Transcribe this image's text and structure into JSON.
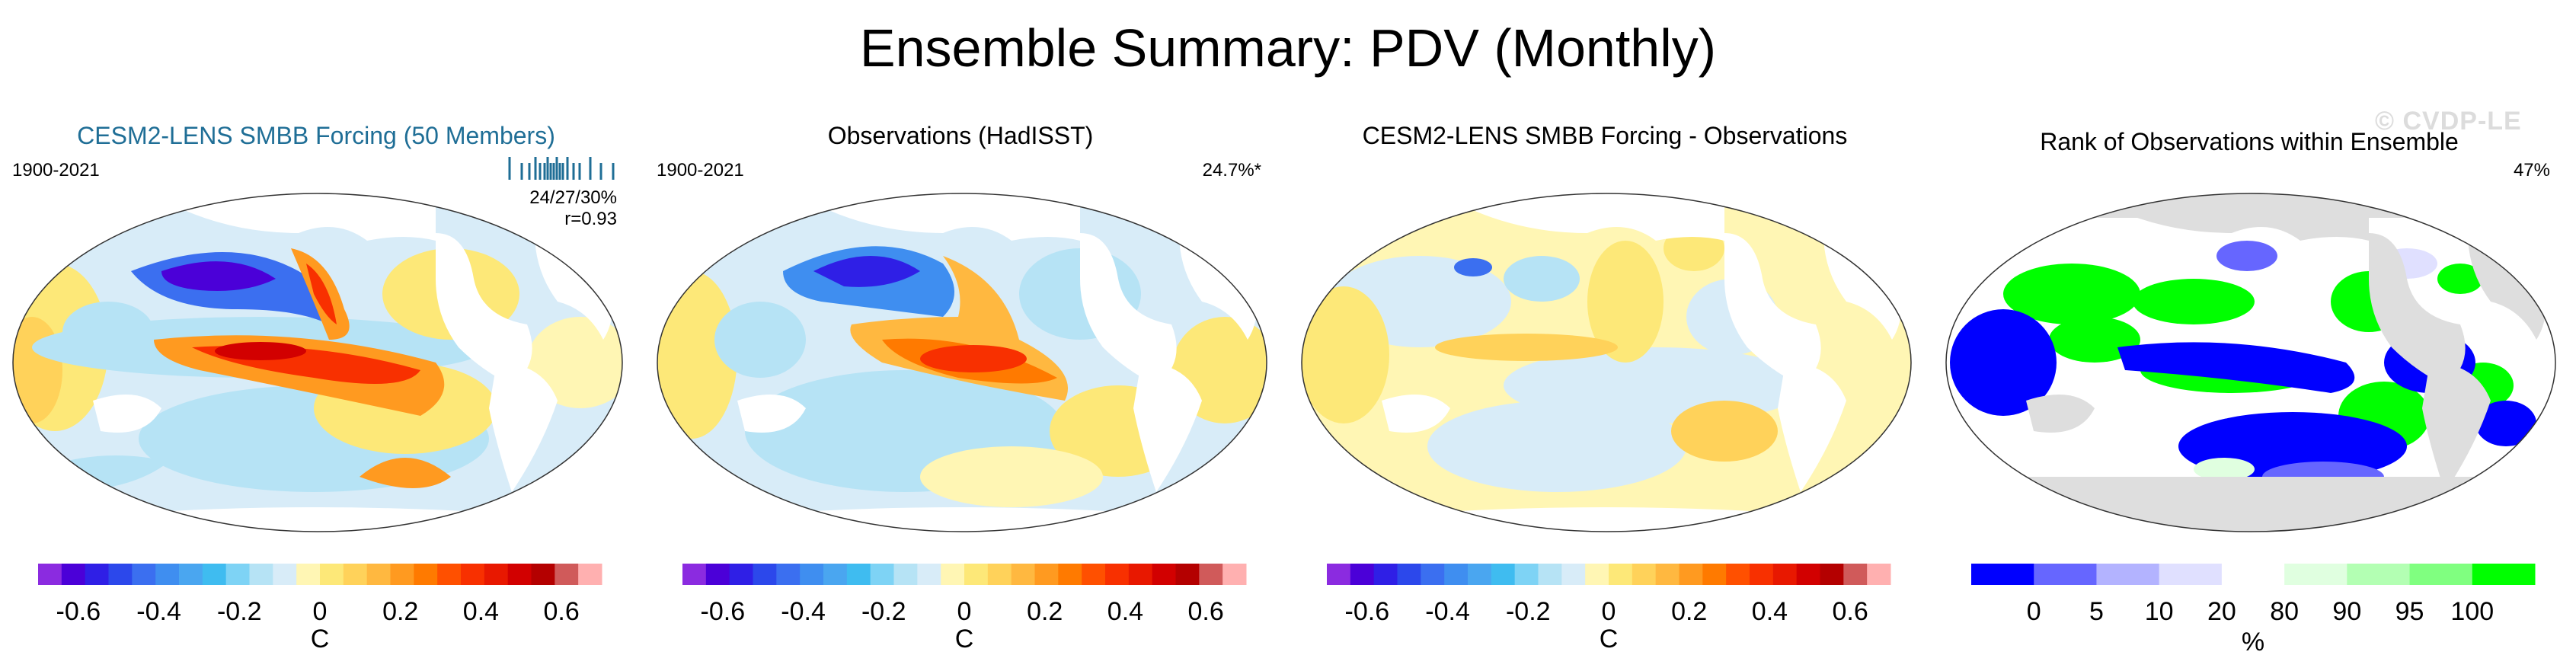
{
  "title": "Ensemble Summary: PDV (Monthly)",
  "watermark": "© CVDP-LE",
  "panels": [
    {
      "title": "CESM2-LENS SMBB Forcing (50 Members)",
      "years": "1900-2021",
      "stat1": "24/27/30%",
      "stat2": "r=0.93"
    },
    {
      "title": "Observations (HadISST)",
      "years": "1900-2021",
      "pct": "24.7%*"
    },
    {
      "title": "CESM2-LENS SMBB Forcing - Observations"
    },
    {
      "title": "Rank of Observations within Ensemble",
      "pct": "47%"
    }
  ],
  "chart_data": [
    {
      "type": "heatmap",
      "title": "CESM2-LENS SMBB Forcing (50 Members)",
      "period": "1900-2021",
      "stats": [
        "24/27/30%",
        "r=0.93"
      ],
      "colorbar": {
        "unit": "C",
        "ticks": [
          "-0.6",
          "-0.4",
          "-0.2",
          "0",
          "0.2",
          "0.4",
          "0.6"
        ],
        "range": [
          -0.7,
          0.7
        ]
      },
      "colors": [
        "#8b2be0",
        "#4b00d8",
        "#2f1fe6",
        "#2c48eb",
        "#3b6ff0",
        "#3f8ef0",
        "#4aa6f0",
        "#3fbcf0",
        "#7ed3f5",
        "#b6e3f5",
        "#d8ecf8",
        "#fff6b4",
        "#fde878",
        "#ffd25a",
        "#ffb840",
        "#ff9a20",
        "#ff7a00",
        "#ff5000",
        "#f83000",
        "#e81800",
        "#d20000",
        "#b40000",
        "#d05a5a",
        "#ffb0b0"
      ]
    },
    {
      "type": "heatmap",
      "title": "Observations (HadISST)",
      "period": "1900-2021",
      "stats": [
        "24.7%*"
      ],
      "colorbar": {
        "unit": "C",
        "ticks": [
          "-0.6",
          "-0.4",
          "-0.2",
          "0",
          "0.2",
          "0.4",
          "0.6"
        ],
        "range": [
          -0.7,
          0.7
        ]
      }
    },
    {
      "type": "heatmap",
      "title": "CESM2-LENS SMBB Forcing - Observations",
      "colorbar": {
        "unit": "C",
        "ticks": [
          "-0.6",
          "-0.4",
          "-0.2",
          "0",
          "0.2",
          "0.4",
          "0.6"
        ],
        "range": [
          -0.7,
          0.7
        ]
      }
    },
    {
      "type": "heatmap",
      "title": "Rank of Observations within Ensemble",
      "stats": [
        "47%"
      ],
      "colorbar": {
        "unit": "%",
        "ticks": [
          "0",
          "5",
          "10",
          "20",
          "80",
          "90",
          "95",
          "100"
        ],
        "bounds": [
          0,
          5,
          10,
          20,
          80,
          90,
          95,
          100
        ],
        "colors": [
          "#0000ff",
          "#6666ff",
          "#b3b3ff",
          "#e0e0ff",
          "#ffffff",
          "#e0ffe0",
          "#b3ffb3",
          "#80ff80",
          "#00ff00"
        ]
      }
    }
  ]
}
